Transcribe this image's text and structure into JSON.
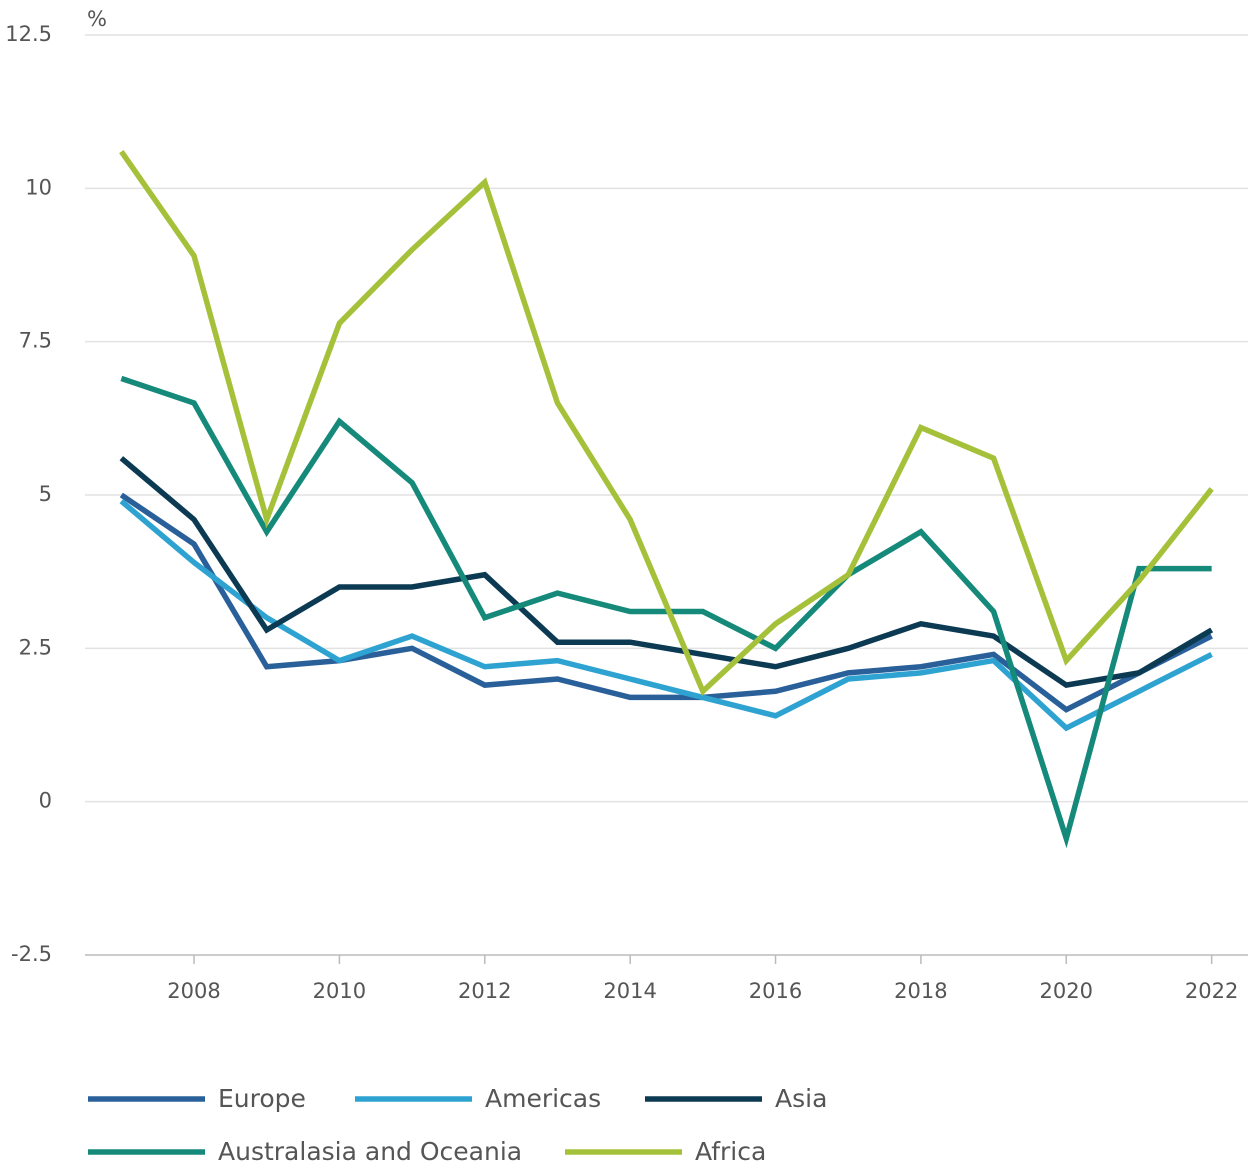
{
  "chart_data": {
    "type": "line",
    "y_label": "%",
    "x": [
      2007,
      2008,
      2009,
      2010,
      2011,
      2012,
      2013,
      2014,
      2015,
      2016,
      2017,
      2018,
      2019,
      2020,
      2021,
      2022
    ],
    "xlim": [
      2006.5,
      2022.5
    ],
    "xticks": [
      2008,
      2010,
      2012,
      2014,
      2016,
      2018,
      2020,
      2022
    ],
    "ylim": [
      -2.5,
      12.5
    ],
    "yticks": [
      12.5,
      10,
      7.5,
      5,
      2.5,
      0,
      -2.5
    ],
    "grid": true,
    "legend": "bottom",
    "series": [
      {
        "name": "Europe",
        "color": "#2a6099",
        "values": [
          5.0,
          4.2,
          2.2,
          2.3,
          2.5,
          1.9,
          2.0,
          1.7,
          1.7,
          1.8,
          2.1,
          2.2,
          2.4,
          1.5,
          2.1,
          2.7
        ]
      },
      {
        "name": "Americas",
        "color": "#2ea3d1",
        "values": [
          4.9,
          3.9,
          3.0,
          2.3,
          2.7,
          2.2,
          2.3,
          2.0,
          1.7,
          1.4,
          2.0,
          2.1,
          2.3,
          1.2,
          1.8,
          2.4
        ]
      },
      {
        "name": "Asia",
        "color": "#0b3a52",
        "values": [
          5.6,
          4.6,
          2.8,
          3.5,
          3.5,
          3.7,
          2.6,
          2.6,
          2.4,
          2.2,
          2.5,
          2.9,
          2.7,
          1.9,
          2.1,
          2.8
        ]
      },
      {
        "name": "Australasia and Oceania",
        "color": "#15897a",
        "values": [
          6.9,
          6.5,
          4.4,
          6.2,
          5.2,
          3.0,
          3.4,
          3.1,
          3.1,
          2.5,
          3.7,
          4.4,
          3.1,
          -0.6,
          3.8,
          3.8
        ]
      },
      {
        "name": "Africa",
        "color": "#a5c13a",
        "values": [
          10.6,
          8.9,
          4.6,
          7.8,
          9.0,
          10.1,
          6.5,
          4.6,
          1.8,
          2.9,
          3.7,
          6.1,
          5.6,
          2.3,
          3.6,
          5.1
        ]
      }
    ]
  }
}
